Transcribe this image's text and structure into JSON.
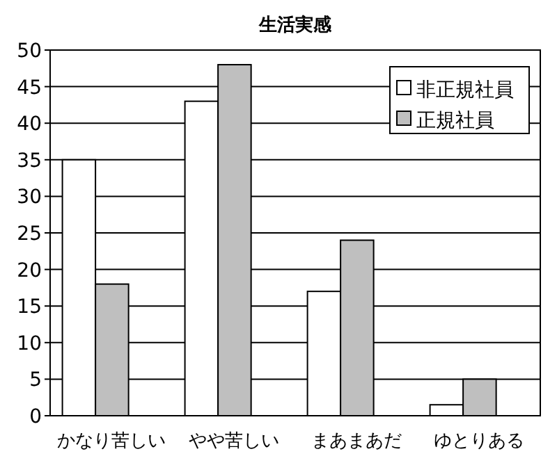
{
  "chart_data": {
    "type": "bar",
    "title": "生活実感",
    "categories": [
      "かなり苦しい",
      "やや苦しい",
      "まあまあだ",
      "ゆとりある"
    ],
    "series": [
      {
        "name": "非正規社員",
        "color": "#ffffff",
        "values": [
          35,
          43,
          17,
          1.5
        ]
      },
      {
        "name": "正規社員",
        "color": "#bfbfbf",
        "values": [
          18,
          48,
          24,
          5
        ]
      }
    ],
    "ylim": [
      0,
      50
    ],
    "yticks": [
      0,
      5,
      10,
      15,
      20,
      25,
      30,
      35,
      40,
      45,
      50
    ],
    "grid": "y",
    "legend": "top right"
  }
}
